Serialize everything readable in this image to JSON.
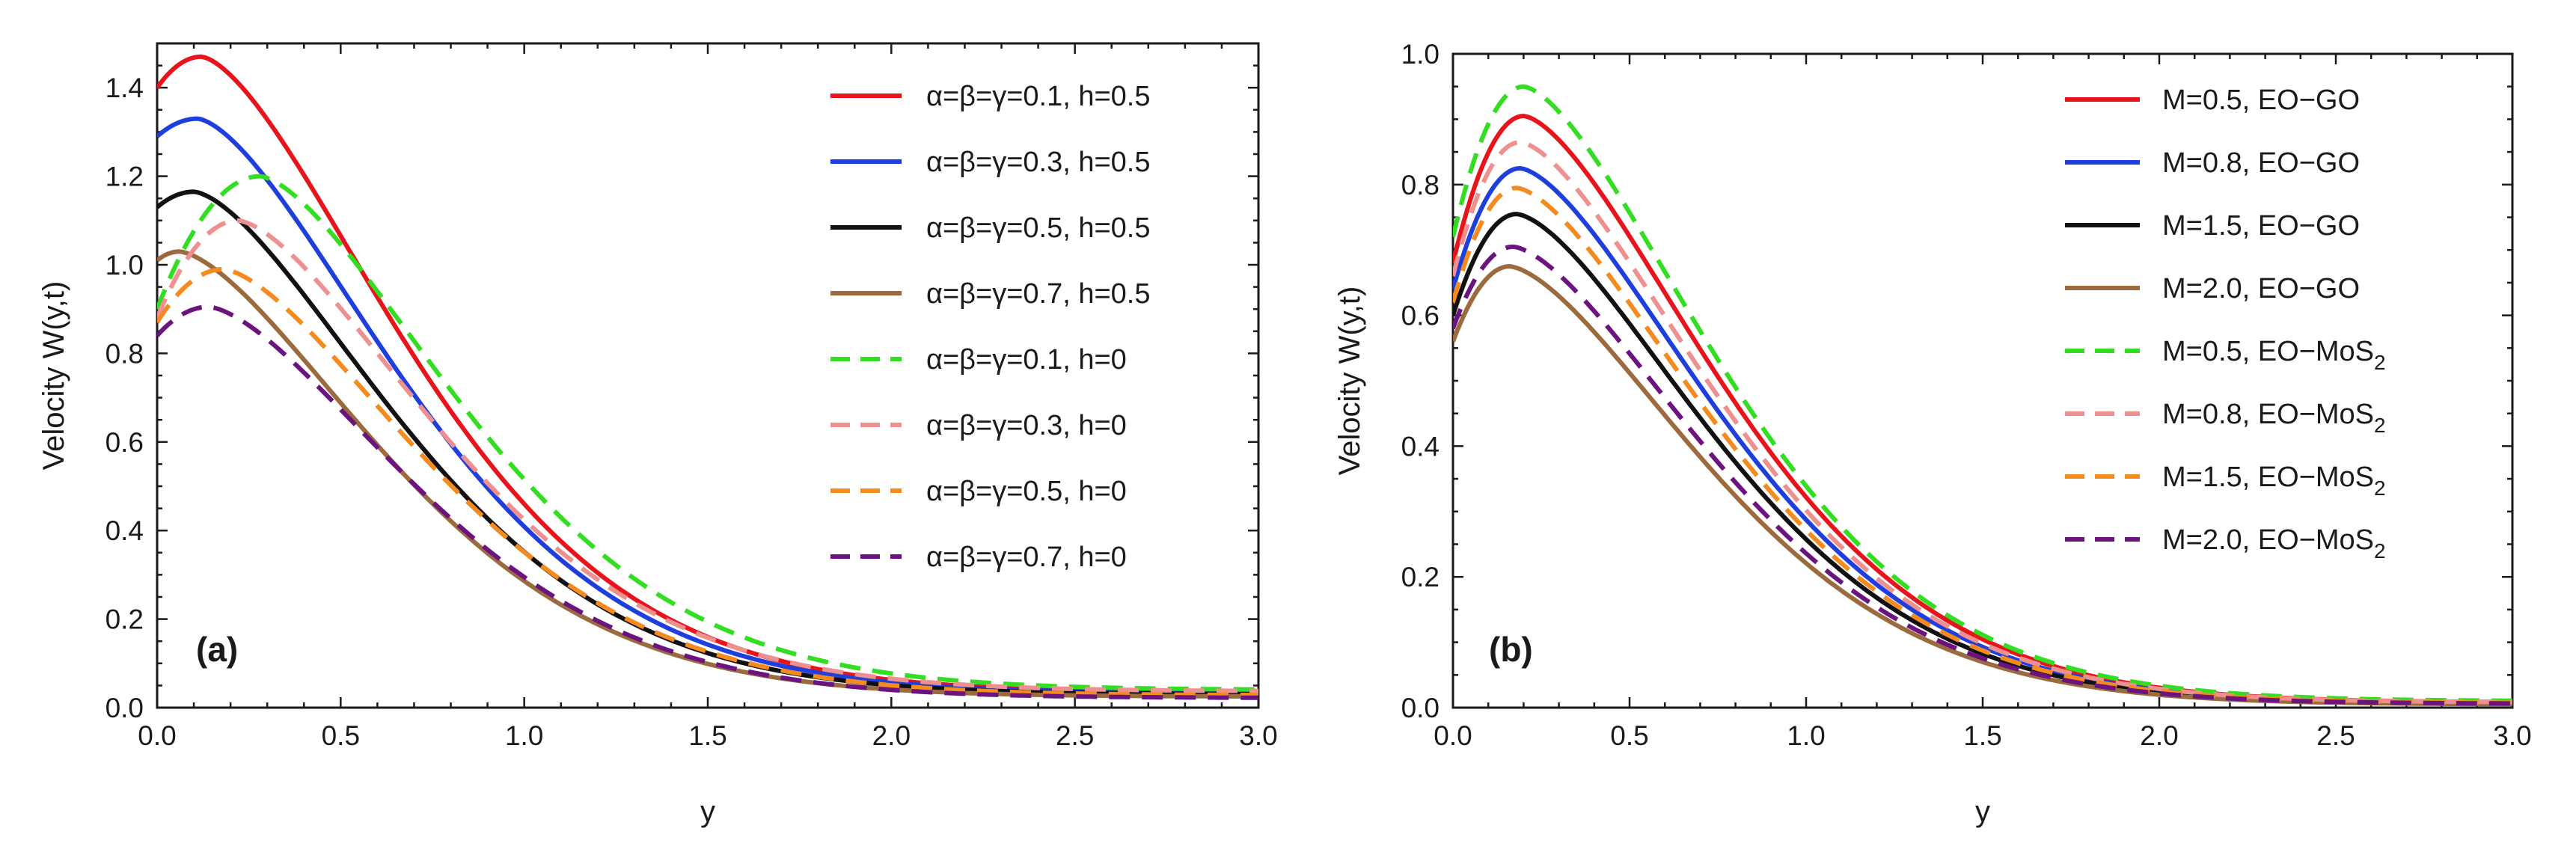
{
  "figure_panels": [
    "(a)",
    "(b)"
  ],
  "chart_data": [
    {
      "type": "line",
      "panel_label": "(a)",
      "xlabel": "y",
      "ylabel": "Velocity W(y,t)",
      "xlim": [
        0,
        3.0
      ],
      "ylim": [
        0,
        1.5
      ],
      "xticks": [
        "0.0",
        "0.5",
        "1.0",
        "1.5",
        "2.0",
        "2.5",
        "3.0"
      ],
      "yticks": [
        "0.0",
        "0.2",
        "0.4",
        "0.6",
        "0.8",
        "1.0",
        "1.2",
        "1.4"
      ],
      "legend_position": "top-right",
      "series": [
        {
          "name": "α=β=γ=0.1, h=0.5",
          "color": "#e8141c",
          "dash": false,
          "params": {
            "w0": 1.4,
            "peak": 1.47,
            "ypk": 0.12,
            "tail": 0.035
          }
        },
        {
          "name": "α=β=γ=0.3, h=0.5",
          "color": "#1f3fdc",
          "dash": false,
          "params": {
            "w0": 1.29,
            "peak": 1.33,
            "ypk": 0.11,
            "tail": 0.033
          }
        },
        {
          "name": "α=β=γ=0.5, h=0.5",
          "color": "#111111",
          "dash": false,
          "params": {
            "w0": 1.13,
            "peak": 1.165,
            "ypk": 0.1,
            "tail": 0.03
          }
        },
        {
          "name": "α=β=γ=0.7, h=0.5",
          "color": "#9b6b3f",
          "dash": false,
          "params": {
            "w0": 1.01,
            "peak": 1.03,
            "ypk": 0.06,
            "tail": 0.025
          }
        },
        {
          "name": "α=β=γ=0.1, h=0",
          "color": "#33dd22",
          "dash": true,
          "params": {
            "w0": 0.9,
            "peak": 1.2,
            "ypk": 0.28,
            "tail": 0.04
          }
        },
        {
          "name": "α=β=γ=0.3, h=0",
          "color": "#ef9090",
          "dash": true,
          "params": {
            "w0": 0.88,
            "peak": 1.1,
            "ypk": 0.22,
            "tail": 0.037
          }
        },
        {
          "name": "α=β=γ=0.5, h=0",
          "color": "#f58a1f",
          "dash": true,
          "params": {
            "w0": 0.87,
            "peak": 0.99,
            "ypk": 0.18,
            "tail": 0.028
          }
        },
        {
          "name": "α=β=γ=0.7, h=0",
          "color": "#6b137e",
          "dash": true,
          "params": {
            "w0": 0.84,
            "peak": 0.905,
            "ypk": 0.14,
            "tail": 0.022
          }
        }
      ]
    },
    {
      "type": "line",
      "panel_label": "(b)",
      "xlabel": "y",
      "ylabel": "Velocity W(y,t)",
      "xlim": [
        0,
        3.0
      ],
      "ylim": [
        0,
        1.0
      ],
      "xticks": [
        "0.0",
        "0.5",
        "1.0",
        "1.5",
        "2.0",
        "2.5",
        "3.0"
      ],
      "yticks": [
        "0.0",
        "0.2",
        "0.4",
        "0.6",
        "0.8",
        "1.0"
      ],
      "legend_position": "top-right",
      "series": [
        {
          "name": "M=0.5, EO−GO",
          "color": "#e8141c",
          "dash": false,
          "params": {
            "w0": 0.68,
            "peak": 0.905,
            "ypk": 0.2,
            "tail": 0.008
          }
        },
        {
          "name": "M=0.8, EO−GO",
          "color": "#1f3fdc",
          "dash": false,
          "params": {
            "w0": 0.64,
            "peak": 0.825,
            "ypk": 0.19,
            "tail": 0.007
          }
        },
        {
          "name": "M=1.5, EO−GO",
          "color": "#111111",
          "dash": false,
          "params": {
            "w0": 0.6,
            "peak": 0.755,
            "ypk": 0.18,
            "tail": 0.006
          }
        },
        {
          "name": "M=2.0, EO−GO",
          "color": "#9b6b3f",
          "dash": false,
          "params": {
            "w0": 0.56,
            "peak": 0.675,
            "ypk": 0.16,
            "tail": 0.005
          }
        },
        {
          "name": "M=0.5, EO−MoS",
          "name_sub": "2",
          "color": "#33dd22",
          "dash": true,
          "params": {
            "w0": 0.72,
            "peak": 0.95,
            "ypk": 0.2,
            "tail": 0.01
          }
        },
        {
          "name": "M=0.8, EO−MoS",
          "name_sub": "2",
          "color": "#ef9090",
          "dash": true,
          "params": {
            "w0": 0.66,
            "peak": 0.865,
            "ypk": 0.19,
            "tail": 0.008
          }
        },
        {
          "name": "M=1.5, EO−MoS",
          "name_sub": "2",
          "color": "#f58a1f",
          "dash": true,
          "params": {
            "w0": 0.62,
            "peak": 0.795,
            "ypk": 0.18,
            "tail": 0.007
          }
        },
        {
          "name": "M=2.0, EO−MoS",
          "name_sub": "2",
          "color": "#6b137e",
          "dash": true,
          "params": {
            "w0": 0.58,
            "peak": 0.705,
            "ypk": 0.17,
            "tail": 0.006
          }
        }
      ]
    }
  ]
}
